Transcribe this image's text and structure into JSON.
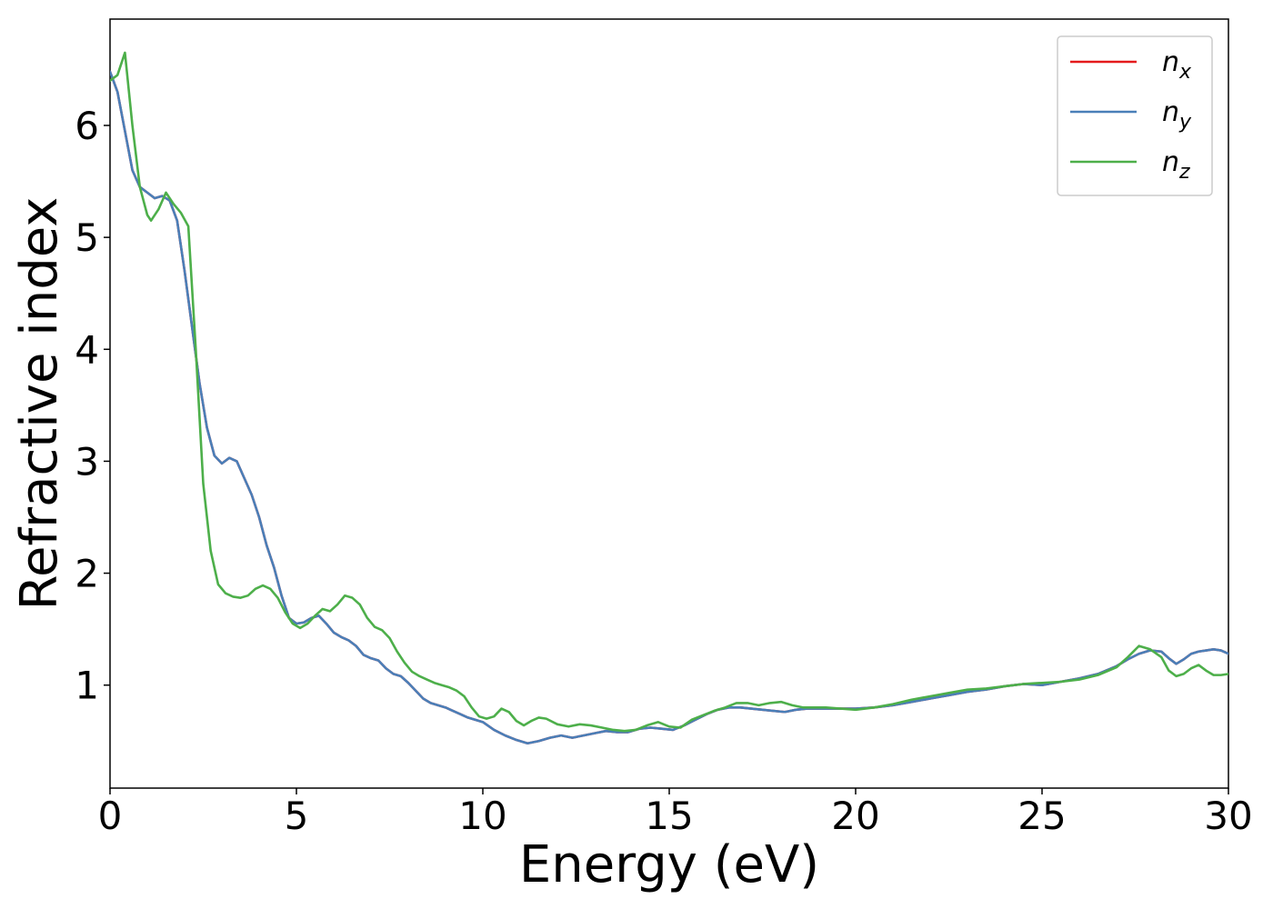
{
  "chart_data": {
    "type": "line",
    "title": "",
    "xlabel": "Energy (eV)",
    "ylabel": "Refractive index",
    "xlim": [
      0,
      30
    ],
    "ylim": [
      0.08,
      6.95
    ],
    "grid": false,
    "legend_position": "top-right",
    "xticks": [
      0,
      5,
      10,
      15,
      20,
      25,
      30
    ],
    "yticks": [
      1,
      2,
      3,
      4,
      5,
      6
    ],
    "series": [
      {
        "name": "n_x",
        "legend_main": "n",
        "legend_sub": "x",
        "color": "#e41a1c",
        "x": [
          0,
          0.2,
          0.4,
          0.6,
          0.8,
          1.0,
          1.2,
          1.4,
          1.6,
          1.8,
          2.0,
          2.2,
          2.4,
          2.6,
          2.8,
          3.0,
          3.2,
          3.4,
          3.6,
          3.8,
          4.0,
          4.2,
          4.4,
          4.6,
          4.8,
          5.0,
          5.2,
          5.4,
          5.6,
          5.8,
          6.0,
          6.2,
          6.4,
          6.6,
          6.8,
          7.0,
          7.2,
          7.4,
          7.6,
          7.8,
          8.0,
          8.2,
          8.4,
          8.6,
          8.8,
          9.0,
          9.2,
          9.4,
          9.6,
          9.8,
          10.0,
          10.3,
          10.6,
          10.9,
          11.2,
          11.5,
          11.8,
          12.1,
          12.4,
          12.7,
          13.0,
          13.3,
          13.6,
          13.9,
          14.2,
          14.5,
          14.8,
          15.1,
          15.4,
          15.7,
          16.0,
          16.3,
          16.6,
          16.9,
          17.2,
          17.5,
          17.8,
          18.1,
          18.4,
          18.7,
          19.0,
          19.5,
          20.0,
          20.5,
          21.0,
          21.5,
          22.0,
          22.5,
          23.0,
          23.5,
          24.0,
          24.5,
          25.0,
          25.5,
          26.0,
          26.5,
          27.0,
          27.3,
          27.6,
          27.9,
          28.2,
          28.4,
          28.6,
          28.8,
          29.0,
          29.2,
          29.4,
          29.6,
          29.8,
          30.0
        ],
        "y": [
          6.48,
          6.3,
          5.95,
          5.6,
          5.45,
          5.4,
          5.35,
          5.37,
          5.33,
          5.15,
          4.7,
          4.2,
          3.7,
          3.3,
          3.05,
          2.98,
          3.03,
          3.0,
          2.85,
          2.7,
          2.5,
          2.25,
          2.05,
          1.8,
          1.6,
          1.55,
          1.56,
          1.6,
          1.62,
          1.55,
          1.47,
          1.43,
          1.4,
          1.35,
          1.27,
          1.24,
          1.22,
          1.15,
          1.1,
          1.08,
          1.02,
          0.95,
          0.88,
          0.84,
          0.82,
          0.8,
          0.77,
          0.74,
          0.71,
          0.69,
          0.67,
          0.6,
          0.55,
          0.51,
          0.48,
          0.5,
          0.53,
          0.55,
          0.53,
          0.55,
          0.57,
          0.59,
          0.58,
          0.58,
          0.61,
          0.62,
          0.61,
          0.6,
          0.64,
          0.69,
          0.74,
          0.78,
          0.8,
          0.8,
          0.79,
          0.78,
          0.77,
          0.76,
          0.78,
          0.79,
          0.79,
          0.79,
          0.79,
          0.8,
          0.82,
          0.85,
          0.88,
          0.91,
          0.94,
          0.96,
          0.99,
          1.01,
          1.0,
          1.03,
          1.06,
          1.1,
          1.17,
          1.23,
          1.28,
          1.31,
          1.3,
          1.24,
          1.19,
          1.23,
          1.28,
          1.3,
          1.31,
          1.32,
          1.31,
          1.28
        ]
      },
      {
        "name": "n_y",
        "legend_main": "n",
        "legend_sub": "y",
        "color": "#4a7fb8",
        "x": [
          0,
          0.2,
          0.4,
          0.6,
          0.8,
          1.0,
          1.2,
          1.4,
          1.6,
          1.8,
          2.0,
          2.2,
          2.4,
          2.6,
          2.8,
          3.0,
          3.2,
          3.4,
          3.6,
          3.8,
          4.0,
          4.2,
          4.4,
          4.6,
          4.8,
          5.0,
          5.2,
          5.4,
          5.6,
          5.8,
          6.0,
          6.2,
          6.4,
          6.6,
          6.8,
          7.0,
          7.2,
          7.4,
          7.6,
          7.8,
          8.0,
          8.2,
          8.4,
          8.6,
          8.8,
          9.0,
          9.2,
          9.4,
          9.6,
          9.8,
          10.0,
          10.3,
          10.6,
          10.9,
          11.2,
          11.5,
          11.8,
          12.1,
          12.4,
          12.7,
          13.0,
          13.3,
          13.6,
          13.9,
          14.2,
          14.5,
          14.8,
          15.1,
          15.4,
          15.7,
          16.0,
          16.3,
          16.6,
          16.9,
          17.2,
          17.5,
          17.8,
          18.1,
          18.4,
          18.7,
          19.0,
          19.5,
          20.0,
          20.5,
          21.0,
          21.5,
          22.0,
          22.5,
          23.0,
          23.5,
          24.0,
          24.5,
          25.0,
          25.5,
          26.0,
          26.5,
          27.0,
          27.3,
          27.6,
          27.9,
          28.2,
          28.4,
          28.6,
          28.8,
          29.0,
          29.2,
          29.4,
          29.6,
          29.8,
          30.0
        ],
        "y": [
          6.48,
          6.3,
          5.95,
          5.6,
          5.45,
          5.4,
          5.35,
          5.37,
          5.33,
          5.15,
          4.7,
          4.2,
          3.7,
          3.3,
          3.05,
          2.98,
          3.03,
          3.0,
          2.85,
          2.7,
          2.5,
          2.25,
          2.05,
          1.8,
          1.6,
          1.55,
          1.56,
          1.6,
          1.62,
          1.55,
          1.47,
          1.43,
          1.4,
          1.35,
          1.27,
          1.24,
          1.22,
          1.15,
          1.1,
          1.08,
          1.02,
          0.95,
          0.88,
          0.84,
          0.82,
          0.8,
          0.77,
          0.74,
          0.71,
          0.69,
          0.67,
          0.6,
          0.55,
          0.51,
          0.48,
          0.5,
          0.53,
          0.55,
          0.53,
          0.55,
          0.57,
          0.59,
          0.58,
          0.58,
          0.61,
          0.62,
          0.61,
          0.6,
          0.64,
          0.69,
          0.74,
          0.78,
          0.8,
          0.8,
          0.79,
          0.78,
          0.77,
          0.76,
          0.78,
          0.79,
          0.79,
          0.79,
          0.79,
          0.8,
          0.82,
          0.85,
          0.88,
          0.91,
          0.94,
          0.96,
          0.99,
          1.01,
          1.0,
          1.03,
          1.06,
          1.1,
          1.17,
          1.23,
          1.28,
          1.31,
          1.3,
          1.24,
          1.19,
          1.23,
          1.28,
          1.3,
          1.31,
          1.32,
          1.31,
          1.28
        ]
      },
      {
        "name": "n_z",
        "legend_main": "n",
        "legend_sub": "z",
        "color": "#4daf4a",
        "x": [
          0,
          0.2,
          0.4,
          0.6,
          0.8,
          1.0,
          1.1,
          1.3,
          1.5,
          1.7,
          1.9,
          2.1,
          2.3,
          2.5,
          2.7,
          2.9,
          3.1,
          3.3,
          3.5,
          3.7,
          3.9,
          4.1,
          4.3,
          4.5,
          4.7,
          4.9,
          5.1,
          5.3,
          5.5,
          5.7,
          5.9,
          6.1,
          6.3,
          6.5,
          6.7,
          6.9,
          7.1,
          7.3,
          7.5,
          7.7,
          7.9,
          8.1,
          8.3,
          8.5,
          8.7,
          8.9,
          9.1,
          9.3,
          9.5,
          9.7,
          9.9,
          10.1,
          10.3,
          10.5,
          10.7,
          10.9,
          11.1,
          11.3,
          11.5,
          11.7,
          12.0,
          12.3,
          12.6,
          12.9,
          13.2,
          13.5,
          13.8,
          14.1,
          14.4,
          14.7,
          15.0,
          15.3,
          15.6,
          15.9,
          16.2,
          16.5,
          16.8,
          17.1,
          17.4,
          17.7,
          18.0,
          18.3,
          18.6,
          18.9,
          19.2,
          19.6,
          20.0,
          20.5,
          21.0,
          21.5,
          22.0,
          22.5,
          23.0,
          23.5,
          24.0,
          24.5,
          25.0,
          25.5,
          26.0,
          26.5,
          27.0,
          27.3,
          27.6,
          27.9,
          28.2,
          28.4,
          28.6,
          28.8,
          29.0,
          29.2,
          29.4,
          29.6,
          29.8,
          30.0
        ],
        "y": [
          6.4,
          6.45,
          6.65,
          6.0,
          5.45,
          5.2,
          5.15,
          5.25,
          5.4,
          5.3,
          5.22,
          5.1,
          4.0,
          2.8,
          2.2,
          1.9,
          1.82,
          1.79,
          1.78,
          1.8,
          1.86,
          1.89,
          1.86,
          1.78,
          1.65,
          1.55,
          1.51,
          1.55,
          1.62,
          1.68,
          1.66,
          1.72,
          1.8,
          1.78,
          1.72,
          1.6,
          1.52,
          1.49,
          1.42,
          1.3,
          1.2,
          1.12,
          1.08,
          1.05,
          1.02,
          1.0,
          0.98,
          0.95,
          0.9,
          0.8,
          0.72,
          0.7,
          0.72,
          0.79,
          0.76,
          0.68,
          0.64,
          0.68,
          0.71,
          0.7,
          0.65,
          0.63,
          0.65,
          0.64,
          0.62,
          0.6,
          0.59,
          0.6,
          0.64,
          0.67,
          0.63,
          0.62,
          0.69,
          0.73,
          0.77,
          0.8,
          0.84,
          0.84,
          0.82,
          0.84,
          0.85,
          0.82,
          0.8,
          0.8,
          0.8,
          0.79,
          0.78,
          0.8,
          0.83,
          0.87,
          0.9,
          0.93,
          0.96,
          0.97,
          0.99,
          1.01,
          1.02,
          1.03,
          1.05,
          1.09,
          1.16,
          1.25,
          1.35,
          1.32,
          1.25,
          1.13,
          1.08,
          1.1,
          1.15,
          1.18,
          1.13,
          1.09,
          1.09,
          1.1
        ]
      }
    ]
  }
}
